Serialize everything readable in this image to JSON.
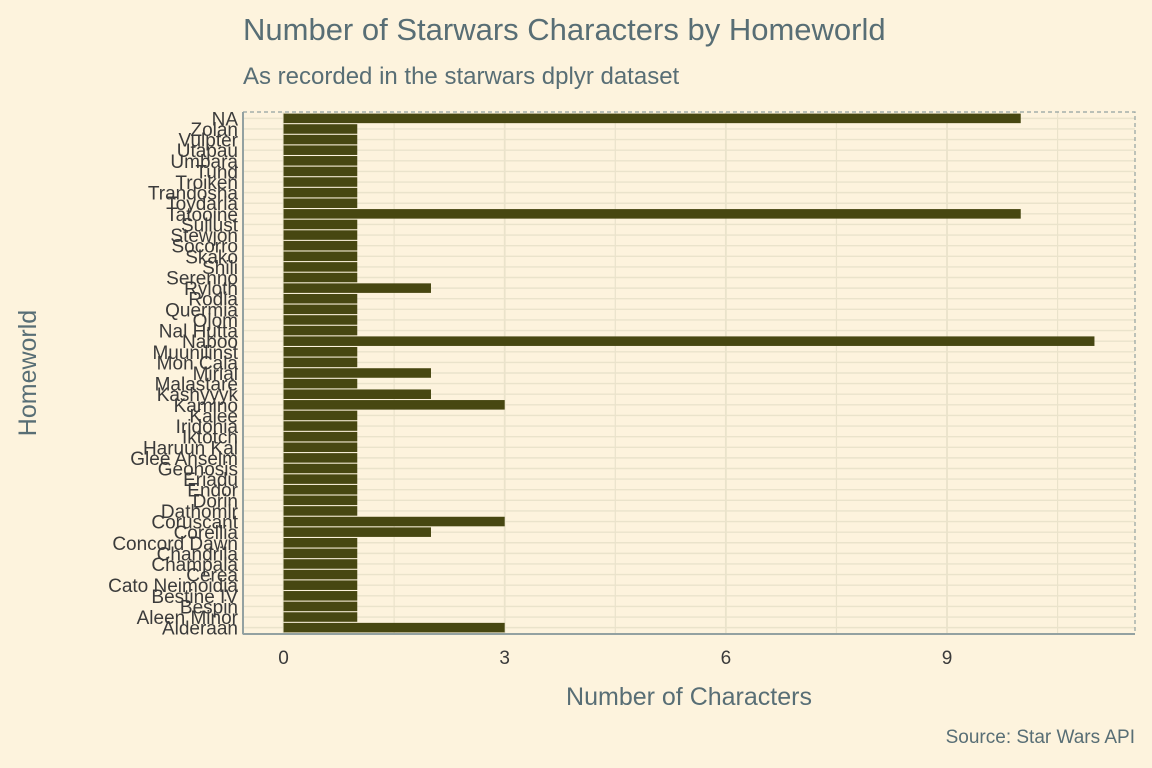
{
  "chart_data": {
    "type": "bar",
    "orientation": "horizontal",
    "title": "Number of Starwars Characters by Homeworld",
    "subtitle": "As recorded in the starwars dplyr dataset",
    "caption": "Source: Star Wars API",
    "xlabel": "Number of Characters",
    "ylabel": "Homeworld",
    "xlim": [
      -0.55,
      11.55
    ],
    "xticks": [
      0,
      3,
      6,
      9
    ],
    "grid": true,
    "legend": "none",
    "colors": {
      "background": "#fdf3dd",
      "bar": "#474711",
      "grid": "#eae3cb",
      "panel_border": "#93a1a1",
      "text": "#586e75",
      "tick_text": "#3b3b3b"
    },
    "categories": [
      "Alderaan",
      "Aleen Minor",
      "Bespin",
      "Bestine IV",
      "Cato Neimoidia",
      "Cerea",
      "Champala",
      "Chandrila",
      "Concord Dawn",
      "Corellia",
      "Coruscant",
      "Dathomir",
      "Dorin",
      "Endor",
      "Eriadu",
      "Geonosis",
      "Glee Anselm",
      "Haruun Kal",
      "Iktotch",
      "Iridonia",
      "Kalee",
      "Kamino",
      "Kashyyyk",
      "Malastare",
      "Mirial",
      "Mon Cala",
      "Muunilinst",
      "Naboo",
      "Nal Hutta",
      "Ojom",
      "Quermia",
      "Rodia",
      "Ryloth",
      "Serenno",
      "Shili",
      "Skako",
      "Socorro",
      "Stewjon",
      "Sullust",
      "Tatooine",
      "Toydaria",
      "Trandosha",
      "Troiken",
      "Tund",
      "Umbara",
      "Utapau",
      "Vulpter",
      "Zolan",
      "NA"
    ],
    "values": [
      3,
      1,
      1,
      1,
      1,
      1,
      1,
      1,
      1,
      2,
      3,
      1,
      1,
      1,
      1,
      1,
      1,
      1,
      1,
      1,
      1,
      3,
      2,
      1,
      2,
      1,
      1,
      11,
      1,
      1,
      1,
      1,
      2,
      1,
      1,
      1,
      1,
      1,
      1,
      10,
      1,
      1,
      1,
      1,
      1,
      1,
      1,
      1,
      10
    ]
  }
}
